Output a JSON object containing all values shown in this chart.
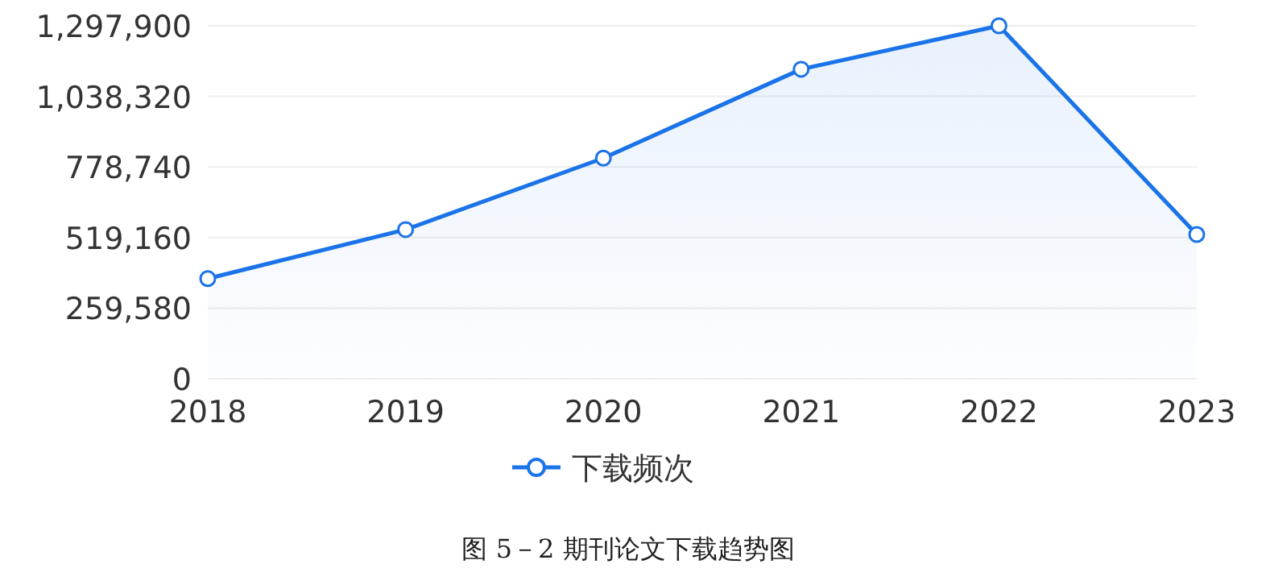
{
  "chart_data": {
    "type": "area",
    "categories": [
      "2018",
      "2019",
      "2020",
      "2021",
      "2022",
      "2023"
    ],
    "series": [
      {
        "name": "下载频次",
        "color": "#1a73e8",
        "values": [
          368300,
          548500,
          811200,
          1138200,
          1297900,
          530500
        ]
      }
    ],
    "ylim": [
      0,
      1297900
    ],
    "yticks": [
      {
        "value": 0,
        "label": "0"
      },
      {
        "value": 259580,
        "label": "259,580"
      },
      {
        "value": 519160,
        "label": "519,160"
      },
      {
        "value": 778740,
        "label": "778,740"
      },
      {
        "value": 1038320,
        "label": "1,038,320"
      },
      {
        "value": 1297900,
        "label": "1,297,900"
      }
    ],
    "grid": "y",
    "legend": "bottom",
    "marker": "circle",
    "line_style": "solid",
    "annotations": [
      "图  5－2    期刊论文下载趋势图"
    ]
  }
}
